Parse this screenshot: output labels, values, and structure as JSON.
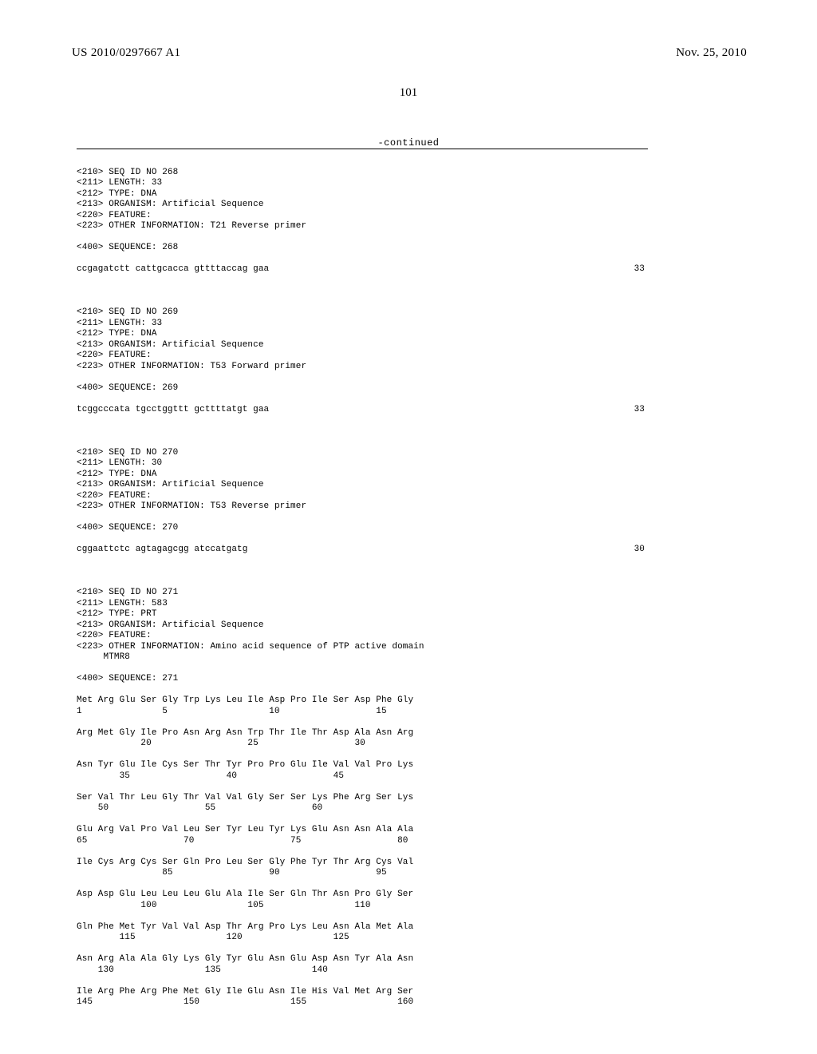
{
  "header": {
    "publication_number": "US 2010/0297667 A1",
    "publication_date": "Nov. 25, 2010"
  },
  "page_number": "101",
  "continued_label": "-continued",
  "entries": [
    {
      "meta": [
        "<210> SEQ ID NO 268",
        "<211> LENGTH: 33",
        "<212> TYPE: DNA",
        "<213> ORGANISM: Artificial Sequence",
        "<220> FEATURE:",
        "<223> OTHER INFORMATION: T21 Reverse primer"
      ],
      "seq_header": "<400> SEQUENCE: 268",
      "seq_lines": [
        {
          "left": "ccgagatctt cattgcacca gttttaccag gaa",
          "right": "33"
        }
      ]
    },
    {
      "meta": [
        "<210> SEQ ID NO 269",
        "<211> LENGTH: 33",
        "<212> TYPE: DNA",
        "<213> ORGANISM: Artificial Sequence",
        "<220> FEATURE:",
        "<223> OTHER INFORMATION: T53 Forward primer"
      ],
      "seq_header": "<400> SEQUENCE: 269",
      "seq_lines": [
        {
          "left": "tcggcccata tgcctggttt gcttttatgt gaa",
          "right": "33"
        }
      ]
    },
    {
      "meta": [
        "<210> SEQ ID NO 270",
        "<211> LENGTH: 30",
        "<212> TYPE: DNA",
        "<213> ORGANISM: Artificial Sequence",
        "<220> FEATURE:",
        "<223> OTHER INFORMATION: T53 Reverse primer"
      ],
      "seq_header": "<400> SEQUENCE: 270",
      "seq_lines": [
        {
          "left": "cggaattctc agtagagcgg atccatgatg",
          "right": "30"
        }
      ]
    },
    {
      "meta": [
        "<210> SEQ ID NO 271",
        "<211> LENGTH: 583",
        "<212> TYPE: PRT",
        "<213> ORGANISM: Artificial Sequence",
        "<220> FEATURE:",
        "<223> OTHER INFORMATION: Amino acid sequence of PTP active domain",
        "     MTMR8"
      ],
      "seq_header": "<400> SEQUENCE: 271",
      "protein_lines": [
        {
          "aa": "Met Arg Glu Ser Gly Trp Lys Leu Ile Asp Pro Ile Ser Asp Phe Gly",
          "nums": "1               5                   10                  15"
        },
        {
          "aa": "Arg Met Gly Ile Pro Asn Arg Asn Trp Thr Ile Thr Asp Ala Asn Arg",
          "nums": "            20                  25                  30"
        },
        {
          "aa": "Asn Tyr Glu Ile Cys Ser Thr Tyr Pro Pro Glu Ile Val Val Pro Lys",
          "nums": "        35                  40                  45"
        },
        {
          "aa": "Ser Val Thr Leu Gly Thr Val Val Gly Ser Ser Lys Phe Arg Ser Lys",
          "nums": "    50                  55                  60"
        },
        {
          "aa": "Glu Arg Val Pro Val Leu Ser Tyr Leu Tyr Lys Glu Asn Asn Ala Ala",
          "nums": "65                  70                  75                  80"
        },
        {
          "aa": "Ile Cys Arg Cys Ser Gln Pro Leu Ser Gly Phe Tyr Thr Arg Cys Val",
          "nums": "                85                  90                  95"
        },
        {
          "aa": "Asp Asp Glu Leu Leu Leu Glu Ala Ile Ser Gln Thr Asn Pro Gly Ser",
          "nums": "            100                 105                 110"
        },
        {
          "aa": "Gln Phe Met Tyr Val Val Asp Thr Arg Pro Lys Leu Asn Ala Met Ala",
          "nums": "        115                 120                 125"
        },
        {
          "aa": "Asn Arg Ala Ala Gly Lys Gly Tyr Glu Asn Glu Asp Asn Tyr Ala Asn",
          "nums": "    130                 135                 140"
        },
        {
          "aa": "Ile Arg Phe Arg Phe Met Gly Ile Glu Asn Ile His Val Met Arg Ser",
          "nums": "145                 150                 155                 160"
        }
      ]
    }
  ]
}
